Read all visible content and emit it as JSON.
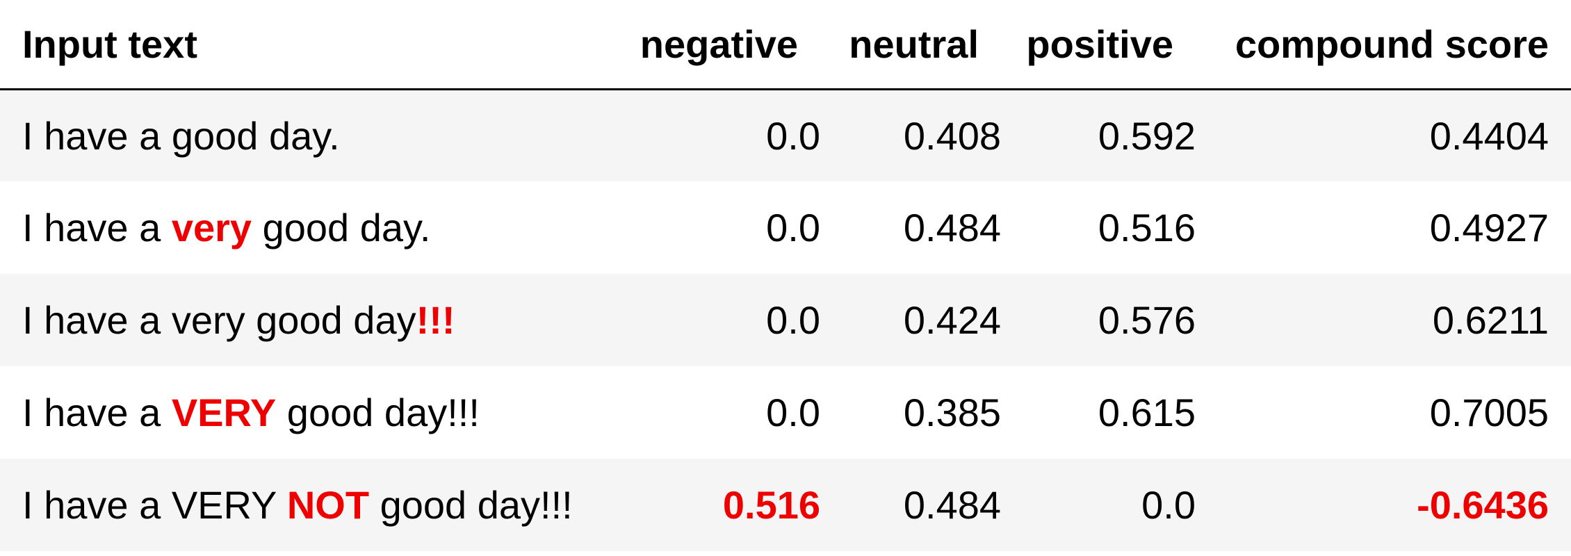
{
  "colors": {
    "highlight": "#ee0000",
    "stripe": "#f5f5f5"
  },
  "table": {
    "headers": [
      "Input text",
      "negative",
      "neutral",
      "positive",
      "compound score"
    ],
    "rows": [
      {
        "input": {
          "pre": "I have a good day.",
          "highlight": "",
          "post": ""
        },
        "negative": "0.0",
        "neutral": "0.408",
        "positive": "0.592",
        "compound": "0.4404",
        "negative_highlight": false,
        "compound_highlight": false
      },
      {
        "input": {
          "pre": "I have a ",
          "highlight": "very",
          "post": " good day."
        },
        "negative": "0.0",
        "neutral": "0.484",
        "positive": "0.516",
        "compound": "0.4927",
        "negative_highlight": false,
        "compound_highlight": false
      },
      {
        "input": {
          "pre": "I have a very good day",
          "highlight": "!!!",
          "post": ""
        },
        "negative": "0.0",
        "neutral": "0.424",
        "positive": "0.576",
        "compound": "0.6211",
        "negative_highlight": false,
        "compound_highlight": false
      },
      {
        "input": {
          "pre": "I have a ",
          "highlight": "VERY",
          "post": " good day!!!"
        },
        "negative": "0.0",
        "neutral": "0.385",
        "positive": "0.615",
        "compound": "0.7005",
        "negative_highlight": false,
        "compound_highlight": false
      },
      {
        "input": {
          "pre": "I have a VERY ",
          "highlight": "NOT",
          "post": " good day!!!"
        },
        "negative": "0.516",
        "neutral": "0.484",
        "positive": "0.0",
        "compound": "-0.6436",
        "negative_highlight": true,
        "compound_highlight": true
      }
    ]
  }
}
